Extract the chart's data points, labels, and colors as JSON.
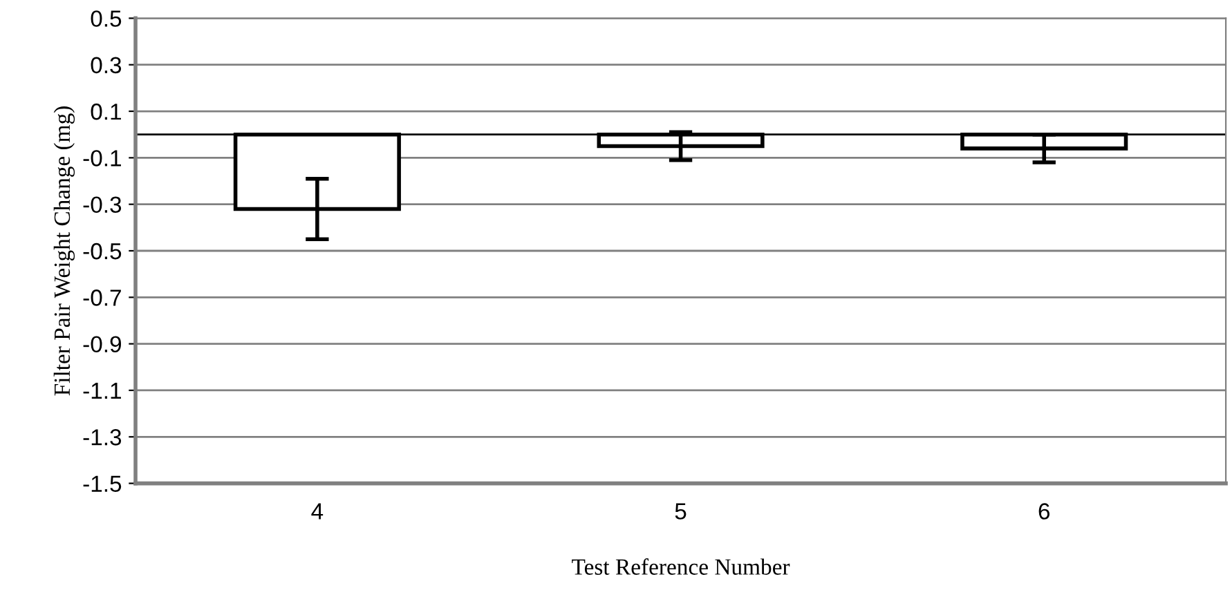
{
  "chart_data": {
    "type": "bar",
    "xlabel": "Test Reference Number",
    "ylabel": "Filter Pair Weight Change (mg)",
    "categories": [
      "4",
      "5",
      "6"
    ],
    "values": [
      -0.32,
      -0.05,
      -0.06
    ],
    "errors": [
      0.13,
      0.06,
      0.06
    ],
    "color": "#ffffff",
    "ylim": [
      -1.5,
      0.5
    ],
    "yticks": [
      {
        "value": -1.5,
        "label": "-1.5"
      },
      {
        "value": -1.3,
        "label": "-1.3"
      },
      {
        "value": -1.1,
        "label": "-1.1"
      },
      {
        "value": -0.9,
        "label": "-0.9"
      },
      {
        "value": -0.7,
        "label": "-0.7"
      },
      {
        "value": -0.5,
        "label": "-0.5"
      },
      {
        "value": -0.3,
        "label": "-0.3"
      },
      {
        "value": -0.1,
        "label": "-0.1"
      },
      {
        "value": 0.1,
        "label": "0.1"
      },
      {
        "value": 0.3,
        "label": "0.3"
      },
      {
        "value": 0.5,
        "label": "0.5"
      }
    ],
    "grid": "y"
  }
}
